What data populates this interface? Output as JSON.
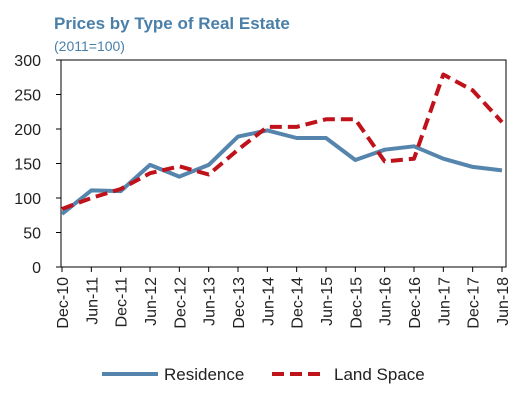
{
  "chart_data": {
    "type": "line",
    "title": "Prices by Type of Real Estate",
    "subtitle": "(2011=100)",
    "categories": [
      "Dec-10",
      "Jun-11",
      "Dec-11",
      "Jun-12",
      "Dec-12",
      "Jun-13",
      "Dec-13",
      "Jun-14",
      "Dec-14",
      "Jun-15",
      "Dec-15",
      "Jun-16",
      "Dec-16",
      "Jun-17",
      "Dec-17",
      "Jun-18"
    ],
    "series": [
      {
        "name": "Residence",
        "color": "#5585ad",
        "style": "solid",
        "values": [
          77,
          111,
          110,
          148,
          131,
          148,
          189,
          198,
          187,
          187,
          155,
          170,
          175,
          157,
          145,
          140
        ]
      },
      {
        "name": "Land Space",
        "color": "#c0121b",
        "style": "dashed",
        "values": [
          84,
          100,
          113,
          136,
          146,
          134,
          170,
          203,
          203,
          214,
          214,
          153,
          157,
          279,
          256,
          210
        ]
      }
    ],
    "ylim": [
      0,
      300
    ],
    "yticks": [
      "0",
      "50",
      "100",
      "150",
      "200",
      "250",
      "300"
    ],
    "grid": false,
    "legend": "bottom"
  }
}
